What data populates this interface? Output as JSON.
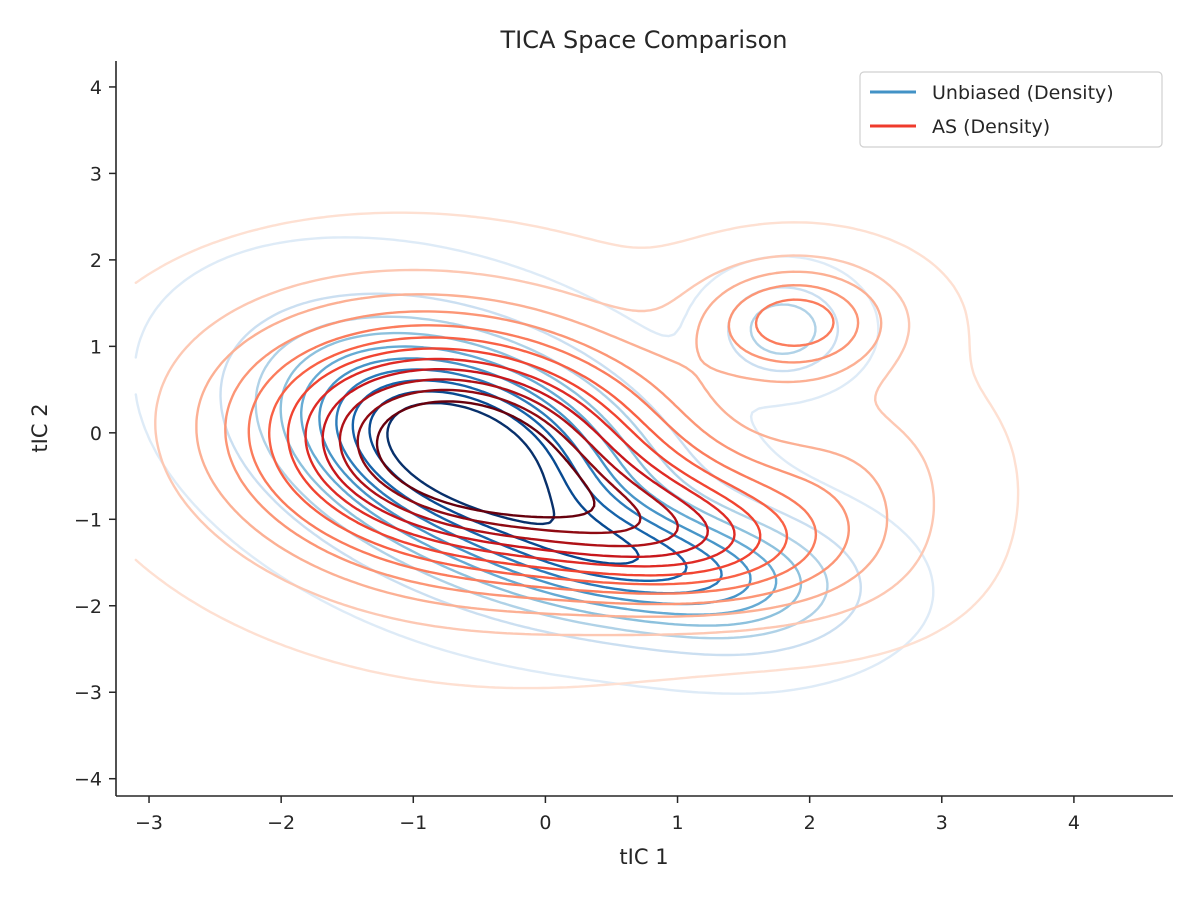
{
  "chart_data": {
    "type": "contour",
    "title": "TICA Space Comparison",
    "xlabel": "tIC 1",
    "ylabel": "tIC 2",
    "xlim": [
      -3.25,
      4.75
    ],
    "ylim": [
      -4.2,
      4.3
    ],
    "xticks": [
      -3,
      -2,
      -1,
      0,
      1,
      2,
      3,
      4
    ],
    "yticks": [
      -4,
      -3,
      -2,
      -1,
      0,
      1,
      2,
      3,
      4
    ],
    "xtick_labels": [
      "−3",
      "−2",
      "−1",
      "0",
      "1",
      "2",
      "3",
      "4"
    ],
    "ytick_labels": [
      "−4",
      "−3",
      "−2",
      "−1",
      "0",
      "1",
      "2",
      "3",
      "4"
    ],
    "grid": false,
    "legend_position": "top-right",
    "series": [
      {
        "name": "Unbiased (Density)",
        "legend_color": "#4292c6",
        "colormap": "Blues",
        "levels": 10,
        "components": [
          {
            "center": [
              -0.65,
              -0.2
            ],
            "sx": 0.85,
            "sy": 0.85,
            "rho": -0.35,
            "weight": 0.72
          },
          {
            "center": [
              0.7,
              -1.5
            ],
            "sx": 0.75,
            "sy": 0.5,
            "rho": -0.25,
            "weight": 0.2
          },
          {
            "center": [
              1.8,
              1.2
            ],
            "sx": 0.3,
            "sy": 0.35,
            "rho": 0.0,
            "weight": 0.03
          },
          {
            "center": [
              1.6,
              -1.8
            ],
            "sx": 0.55,
            "sy": 0.5,
            "rho": 0.0,
            "weight": 0.05
          }
        ]
      },
      {
        "name": "AS (Density)",
        "legend_color": "#ef3b2c",
        "colormap": "Reds",
        "levels": 12,
        "components": [
          {
            "center": [
              -0.65,
              -0.2
            ],
            "sx": 1.05,
            "sy": 0.95,
            "rho": -0.15,
            "weight": 0.74
          },
          {
            "center": [
              1.9,
              1.3
            ],
            "sx": 0.5,
            "sy": 0.45,
            "rho": 0.0,
            "weight": 0.06
          },
          {
            "center": [
              1.0,
              -1.2
            ],
            "sx": 0.8,
            "sy": 0.55,
            "rho": -0.2,
            "weight": 0.15
          },
          {
            "center": [
              2.3,
              -0.6
            ],
            "sx": 0.6,
            "sy": 0.8,
            "rho": 0.0,
            "weight": 0.05
          }
        ]
      }
    ]
  }
}
